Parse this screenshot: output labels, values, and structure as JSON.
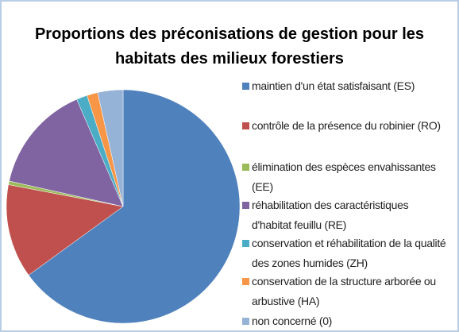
{
  "chart_data": {
    "type": "pie",
    "title": "Proportions des préconisations de gestion pour les habitats des milieux forestiers",
    "categories": [
      "maintien d'un état satisfaisant (ES)",
      "contrôle de la présence du robinier (RO)",
      "élimination des espèces envahissantes (EE)",
      "réhabilitation des caractéristiques d'habitat feuillu (RE)",
      "conservation et réhabilitation de la qualité des zones humides (ZH)",
      "conservation de la structure arborée ou arbustive (HA)",
      "non concerné (0)"
    ],
    "values": [
      65,
      13,
      0.5,
      15,
      1.5,
      1.5,
      3.5
    ],
    "colors": [
      "#4f81bd",
      "#c0504d",
      "#9bbb59",
      "#8064a2",
      "#4bacc6",
      "#f79646",
      "#95b3d7"
    ]
  }
}
